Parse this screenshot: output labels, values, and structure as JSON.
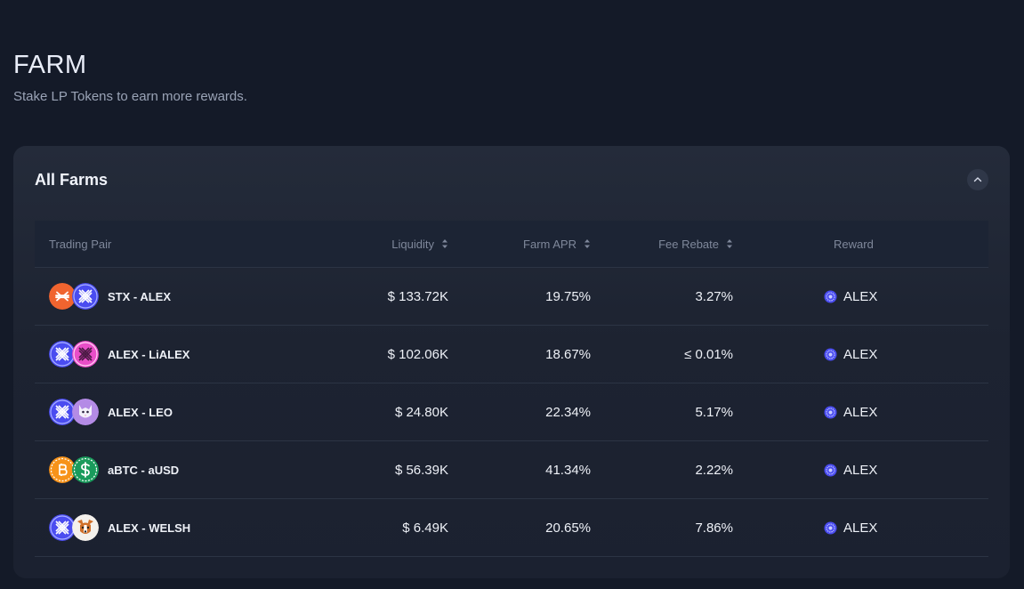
{
  "page": {
    "title": "FARM",
    "subtitle": "Stake LP Tokens to earn more rewards."
  },
  "panel": {
    "title": "All Farms",
    "collapse_icon": "chevron-up-icon"
  },
  "table": {
    "columns": {
      "pair": "Trading Pair",
      "liquidity": "Liquidity",
      "apr": "Farm APR",
      "fee": "Fee Rebate",
      "reward": "Reward"
    },
    "rows": [
      {
        "pair": "STX - ALEX",
        "icon_a": "stx-icon",
        "icon_b": "alex-icon",
        "liquidity": "$ 133.72K",
        "apr": "19.75%",
        "fee": "3.27%",
        "reward": "ALEX"
      },
      {
        "pair": "ALEX - LiALEX",
        "icon_a": "alex-icon",
        "icon_b": "lialex-icon",
        "liquidity": "$ 102.06K",
        "apr": "18.67%",
        "fee": "≤ 0.01%",
        "reward": "ALEX"
      },
      {
        "pair": "ALEX - LEO",
        "icon_a": "alex-icon",
        "icon_b": "leo-icon",
        "liquidity": "$ 24.80K",
        "apr": "22.34%",
        "fee": "5.17%",
        "reward": "ALEX"
      },
      {
        "pair": "aBTC - aUSD",
        "icon_a": "abtc-icon",
        "icon_b": "ausd-icon",
        "liquidity": "$ 56.39K",
        "apr": "41.34%",
        "fee": "2.22%",
        "reward": "ALEX"
      },
      {
        "pair": "ALEX - WELSH",
        "icon_a": "alex-icon",
        "icon_b": "welsh-icon",
        "liquidity": "$ 6.49K",
        "apr": "20.65%",
        "fee": "7.86%",
        "reward": "ALEX"
      }
    ]
  },
  "colors": {
    "background": "#141a28",
    "panel": "#1d2331",
    "stx": "#f0642f",
    "alex": "#4a4cf0",
    "lialex": "#e94ec8",
    "btc": "#f7931a",
    "ausd": "#1a9b5c"
  }
}
